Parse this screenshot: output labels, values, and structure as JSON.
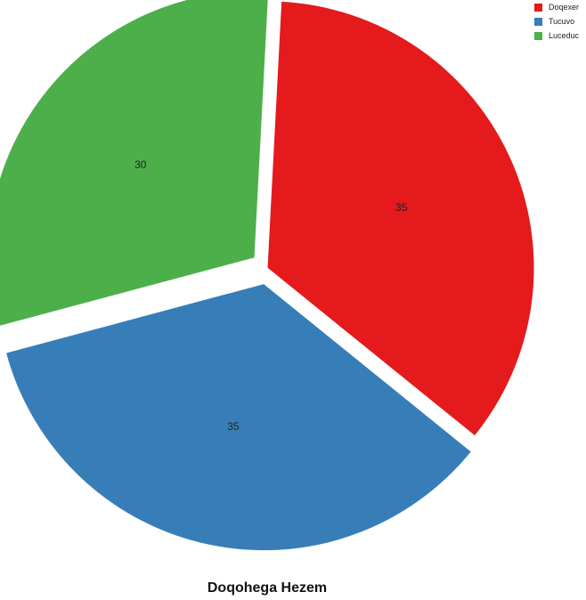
{
  "chart_data": {
    "type": "pie",
    "title": "Doqohega Hezem",
    "categories": [
      "Doqexer",
      "Tucuvo",
      "Luceduc"
    ],
    "values": [
      35,
      35,
      30
    ],
    "colors": [
      "#e41a1c",
      "#377eb8",
      "#4daf4a"
    ],
    "legend_position": "top-right",
    "exploded": true
  }
}
